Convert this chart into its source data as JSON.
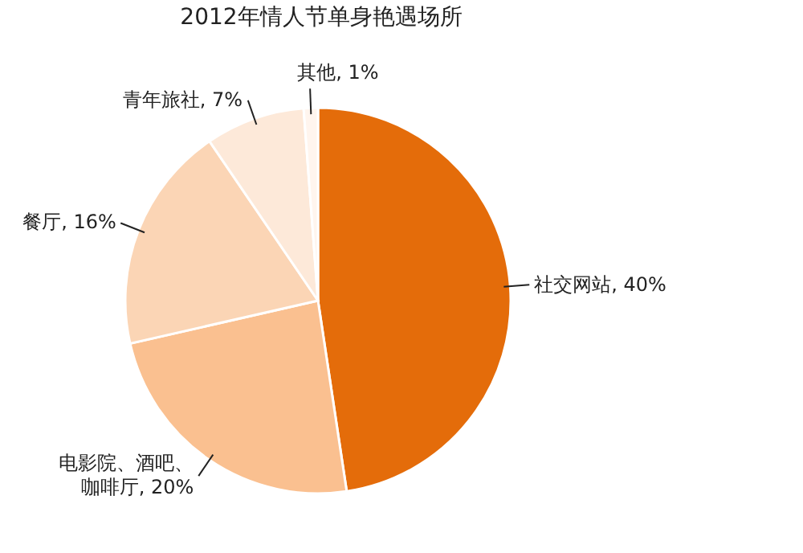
{
  "chart_data": {
    "type": "pie",
    "title": "2012年情人节单身艳遇场所",
    "categories": [
      "社交网站",
      "电影院、酒吧、咖啡厅",
      "餐厅",
      "青年旅社",
      "其他"
    ],
    "values": [
      40,
      20,
      16,
      7,
      1
    ],
    "value_labels": [
      ", 40%",
      ", 20%",
      ", 16%",
      ", 7%",
      ", 1%"
    ],
    "colors": [
      "#e46c0a",
      "#fac090",
      "#fbd5b5",
      "#fde9d9",
      "#fff5ee"
    ]
  }
}
